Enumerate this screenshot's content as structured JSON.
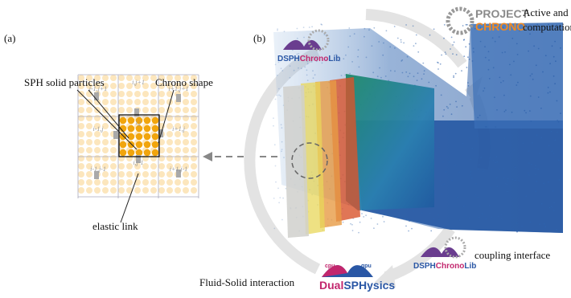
{
  "panel_a": {
    "label": "(a)",
    "annotations": {
      "particles": "SPH solid particles",
      "shape": "Chrono shape",
      "link": "elastic link"
    },
    "cell_labels": [
      "i-1,j+1",
      "i,j+1",
      "i+1,j+1",
      "i-1,j",
      "i,j",
      "i+1,j",
      "i-1,j-1",
      "i,j-1",
      "i+1,j-1"
    ]
  },
  "panel_b": {
    "label": "(b)",
    "chrono_logo": {
      "line1": "PROJECT",
      "line2": "CHRONO"
    },
    "chrono_caption": [
      "Active and reactive force",
      "computation"
    ],
    "lib_logos": [
      {
        "parts": [
          "DSPH",
          "Chrono",
          "Lib"
        ]
      },
      {
        "parts": [
          "DSPH",
          "Chrono",
          "Lib"
        ]
      }
    ],
    "coupling": "coupling interface",
    "fluid_solid": "Fluid-Solid interaction",
    "dualsphysics": {
      "parts": [
        "Dual",
        "SPHysics"
      ],
      "cpu": "cpu",
      "gpu": "gpu"
    }
  }
}
